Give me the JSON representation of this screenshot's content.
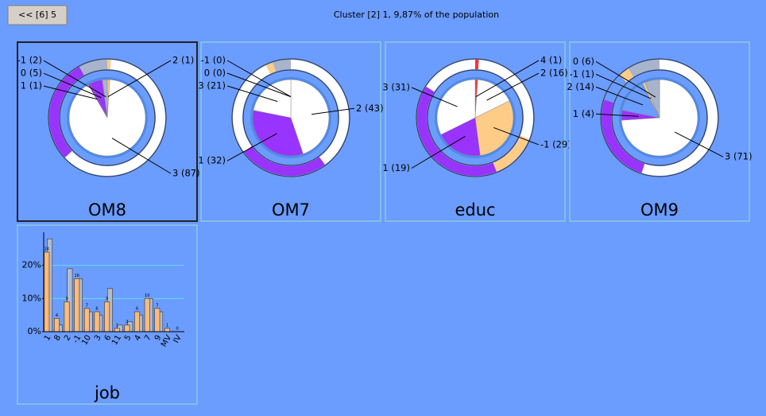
{
  "button": "<< [6] 5",
  "title": "Cluster [2] 1, 9,87% of the population",
  "chart_data": [
    {
      "type": "pie",
      "title": "OM8",
      "categories": [
        "2",
        "3",
        "1",
        "0",
        "-1"
      ],
      "values": [
        1,
        87,
        1,
        5,
        2
      ],
      "value_labels": [
        "2 (1)",
        "3 (87)",
        "1 (1)",
        "0 (5)",
        "-1 (2)"
      ],
      "colors": [
        "#ffcc88",
        "#ffffff",
        "#9933ff",
        "#9933ff",
        "#a8b4cc"
      ],
      "population": [
        1,
        62,
        2,
        27,
        8
      ]
    },
    {
      "type": "pie",
      "title": "OM7",
      "categories": [
        "2",
        "1",
        "3",
        "-1",
        "0"
      ],
      "values": [
        43,
        32,
        21,
        0,
        0
      ],
      "value_labels": [
        "2 (43)",
        "1 (32)",
        "3 (21)",
        "-1 (0)",
        "0 (0)"
      ],
      "colors": [
        "#ffffff",
        "#9933ff",
        "#ffffff",
        "#ffcc88",
        "#a8b4cc"
      ],
      "population": [
        40,
        25,
        28,
        2,
        5
      ]
    },
    {
      "type": "pie",
      "title": "educ",
      "categories": [
        "4",
        "2",
        "-1",
        "1",
        "3"
      ],
      "values": [
        1,
        16,
        29,
        19,
        31
      ],
      "value_labels": [
        "4 (1)",
        "2 (16)",
        "-1 (29)",
        "1 (19)",
        "3 (31)"
      ],
      "colors": [
        "#ff3333",
        "#ffffff",
        "#ffcc88",
        "#9933ff",
        "#ffffff"
      ],
      "population": [
        1,
        30,
        13,
        40,
        16
      ]
    },
    {
      "type": "pie",
      "title": "OM9",
      "categories": [
        "3",
        "1",
        "2",
        "-1",
        "0"
      ],
      "values": [
        71,
        4,
        14,
        1,
        6
      ],
      "value_labels": [
        "3 (71)",
        "1 (4)",
        "2 (14)",
        "-1 (1)",
        "0 (6)"
      ],
      "colors": [
        "#ffffff",
        "#9933ff",
        "#6b9cff",
        "#ffcc88",
        "#a8b4cc"
      ],
      "population": [
        55,
        25,
        8,
        3,
        9
      ]
    },
    {
      "type": "bar",
      "title": "job",
      "categories": [
        "1",
        "8",
        "2",
        "-1",
        "10",
        "3",
        "6",
        "11",
        "5",
        "4",
        "7",
        "9",
        "MV",
        "IV"
      ],
      "series": [
        {
          "color": "#b4bccc",
          "values": [
            28,
            2,
            19,
            16,
            6,
            5,
            13,
            2,
            3,
            5,
            10,
            6,
            0,
            0
          ]
        },
        {
          "color": "#ffbb77",
          "values": [
            24,
            4,
            9,
            16,
            7,
            6,
            9,
            1,
            2,
            6,
            10,
            7,
            1,
            0
          ]
        }
      ],
      "ylim": [
        0,
        30
      ],
      "yticks": [
        {
          "value": 0,
          "label": "0%"
        },
        {
          "value": 10,
          "label": "10%"
        },
        {
          "value": 20,
          "label": "20%"
        }
      ],
      "grid": true
    }
  ]
}
